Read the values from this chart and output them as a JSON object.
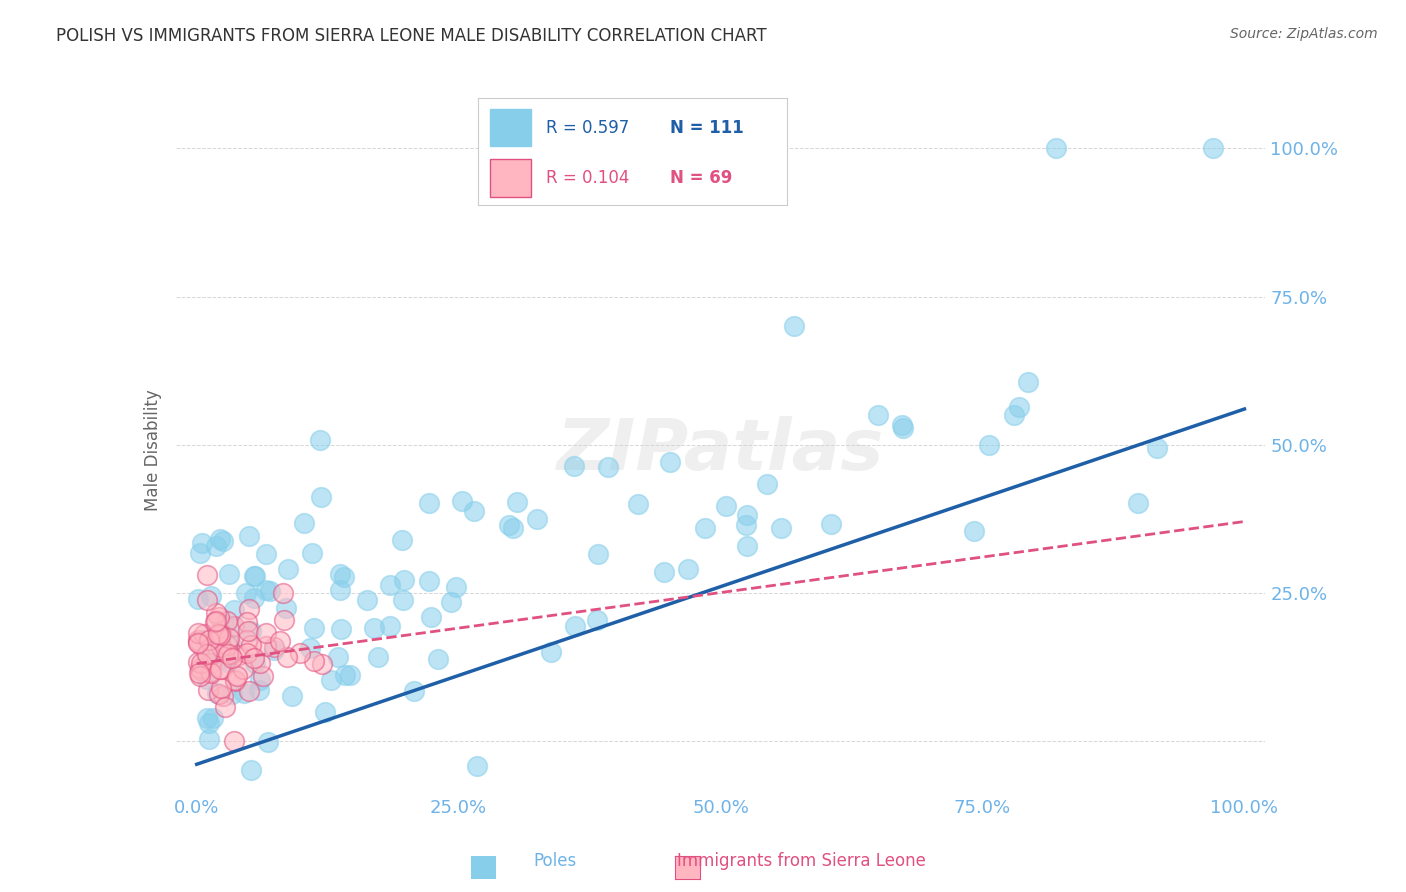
{
  "title": "POLISH VS IMMIGRANTS FROM SIERRA LEONE MALE DISABILITY CORRELATION CHART",
  "source": "Source: ZipAtlas.com",
  "xlabel_label": "Poles",
  "xlabel_label2": "Immigrants from Sierra Leone",
  "ylabel": "Male Disability",
  "watermark": "ZIPatlas",
  "legend_blue_r": "R = 0.597",
  "legend_blue_n": "N = 111",
  "legend_pink_r": "R = 0.104",
  "legend_pink_n": "N = 69",
  "blue_color": "#87CEEB",
  "blue_line_color": "#1E5FA8",
  "pink_color": "#FFB6C1",
  "pink_line_color": "#E05080",
  "axis_tick_color": "#6EB3E8",
  "background_color": "#FFFFFF",
  "grid_color": "#CCCCCC",
  "xlim": [
    0,
    1.0
  ],
  "ylim": [
    -0.05,
    1.05
  ],
  "blue_R": 0.597,
  "pink_R": 0.104,
  "blue_intercept": -0.05,
  "blue_slope": 0.62,
  "pink_intercept": 0.12,
  "pink_slope": 0.23
}
